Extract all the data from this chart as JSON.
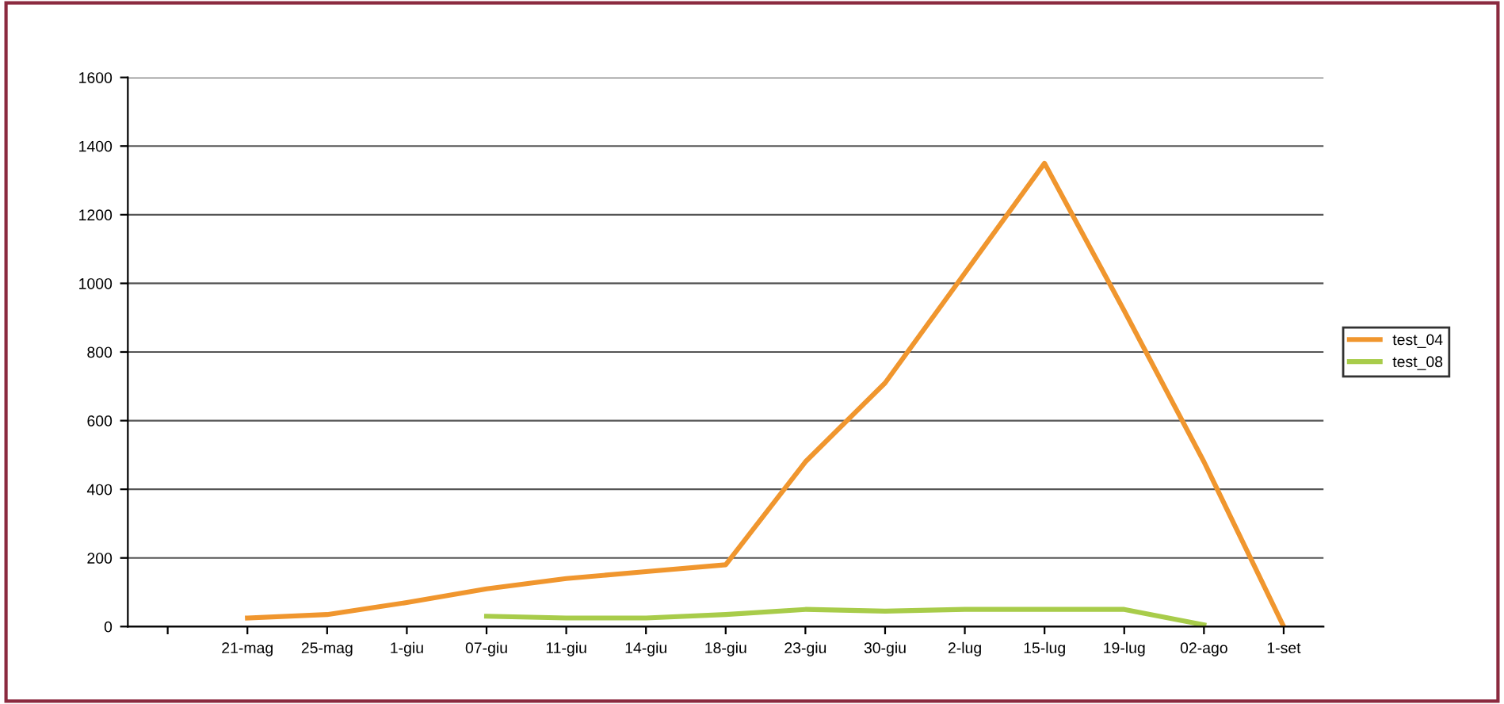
{
  "chart_data": {
    "type": "line",
    "categories": [
      null,
      "21-mag",
      "25-mag",
      "1-giu",
      "07-giu",
      "11-giu",
      "14-giu",
      "18-giu",
      "23-giu",
      "30-giu",
      "2-lug",
      "15-lug",
      "19-lug",
      "02-ago",
      "1-set"
    ],
    "series": [
      {
        "name": "test_04",
        "color": "#f0962e",
        "values": [
          null,
          25,
          35,
          70,
          110,
          140,
          160,
          180,
          480,
          710,
          1030,
          1350,
          920,
          480,
          0
        ]
      },
      {
        "name": "test_08",
        "color": "#a8cc4a",
        "values": [
          null,
          null,
          null,
          null,
          30,
          25,
          25,
          35,
          50,
          45,
          50,
          50,
          50,
          5,
          null
        ]
      }
    ],
    "ylim": [
      0,
      1600
    ],
    "yticks": [
      0,
      200,
      400,
      600,
      800,
      1000,
      1200,
      1400,
      1600
    ],
    "grid": "y",
    "legend": "right",
    "marker": "none"
  }
}
